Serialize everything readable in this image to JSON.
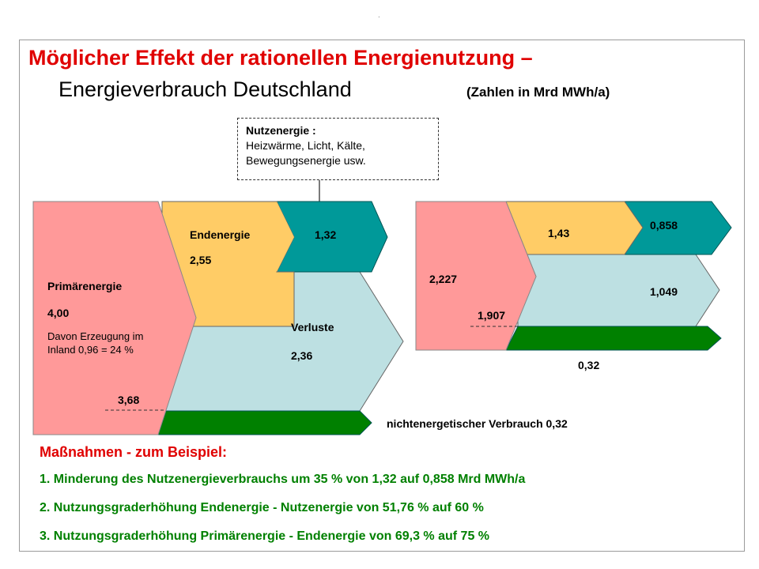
{
  "header": {
    "dot": ".",
    "title_line1": "Möglicher Effekt der rationellen Energienutzung –",
    "title_line2": "Energieverbrauch Deutschland",
    "unit": "(Zahlen in Mrd MWh/a)"
  },
  "note": {
    "heading": "Nutzenergie :",
    "line1": "Heizwärme, Licht, Kälte,",
    "line2": "Bewegungsenergie usw."
  },
  "left_diagram": {
    "primary_label": "Primärenergie",
    "primary_value": "4,00",
    "domestic_line1": "Davon Erzeugung im",
    "domestic_line2": "Inland 0,96 = 24 %",
    "primary_energetic": "3,68",
    "final_label": "Endenergie",
    "final_value": "2,55",
    "useful_value": "1,32",
    "losses_label": "Verluste",
    "losses_value": "2,36",
    "non_energetic": "nichtenergetischer Verbrauch 0,32"
  },
  "right_diagram": {
    "primary_value": "2,227",
    "primary_energetic": "1,907",
    "final_value": "1,43",
    "useful_value": "0,858",
    "losses_value": "1,049",
    "non_energetic": "0,32"
  },
  "colors": {
    "primary": "#ff9999",
    "final": "#ffcc66",
    "useful": "#009999",
    "losses": "#bde0e2",
    "non_energetic": "#008000",
    "title": "#e00000"
  },
  "measures": {
    "heading": "Maßnahmen - zum Beispiel:",
    "items": [
      "1. Minderung des Nutzenergieverbrauchs um 35 % von 1,32 auf 0,858 Mrd MWh/a",
      "2. Nutzungsgraderhöhung Endenergie - Nutzenergie von 51,76 % auf 60 %",
      "3. Nutzungsgraderhöhung Primärenergie - Endenergie von 69,3 % auf 75 %"
    ]
  }
}
